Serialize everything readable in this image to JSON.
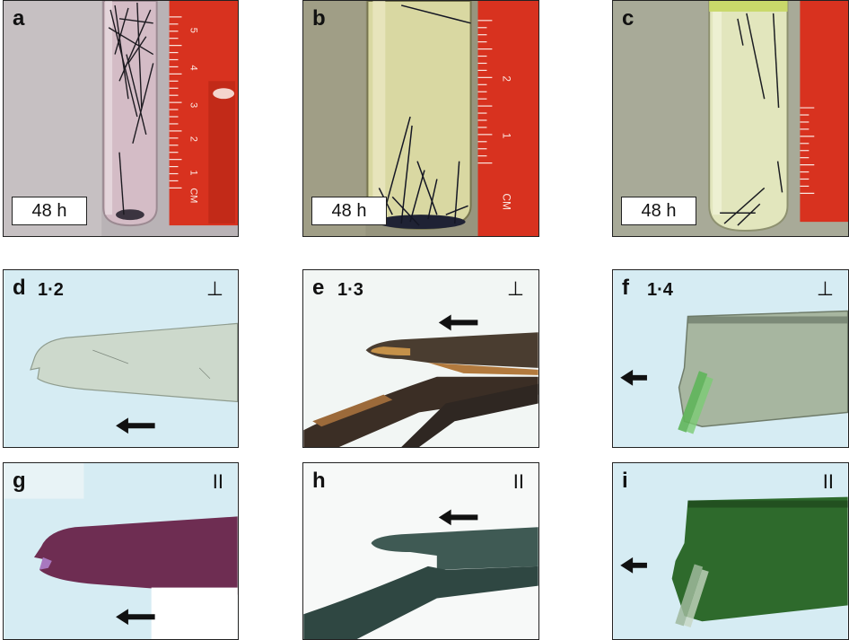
{
  "panels": {
    "a": {
      "label": "a",
      "time": "48 h"
    },
    "b": {
      "label": "b",
      "time": "48 h"
    },
    "c": {
      "label": "c",
      "time": "48 h"
    },
    "d": {
      "label": "d",
      "title": "1·2",
      "polarization": "⊥"
    },
    "e": {
      "label": "e",
      "title": "1·3",
      "polarization": "⊥"
    },
    "f": {
      "label": "f",
      "title": "1·4",
      "polarization": "⊥"
    },
    "g": {
      "label": "g",
      "polarization": "II"
    },
    "h": {
      "label": "h",
      "polarization": "II"
    },
    "i": {
      "label": "i",
      "polarization": "II"
    }
  },
  "ruler": {
    "a_numbers": [
      "5",
      "4",
      "3",
      "2",
      "1",
      "CM"
    ],
    "b_numbers": [
      "2",
      "1",
      "CM"
    ]
  },
  "colors": {
    "ruler_red": "#d8321f",
    "solution_a": "#c9a9b5",
    "solution_b": "#d9d8a2",
    "solution_c": "#e2e6bd",
    "crystal_d": "#cdd9cc",
    "crystal_g": "#6e2d52",
    "crystal_f": "#a7b6a0",
    "crystal_i": "#2e6a2c",
    "background_light": "#d6ecf3"
  }
}
